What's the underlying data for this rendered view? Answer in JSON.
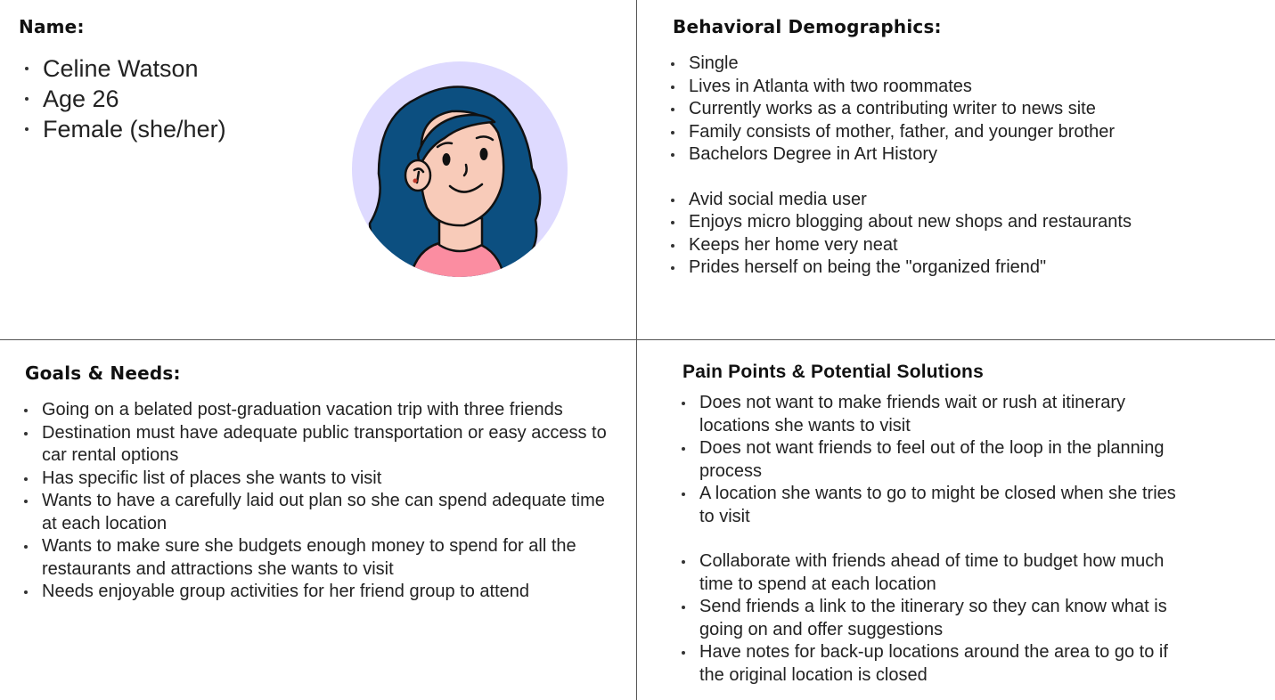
{
  "name_section": {
    "heading": "Name:",
    "items": [
      "Celine Watson",
      "Age 26",
      "Female (she/her)"
    ]
  },
  "avatar": {
    "icon": "user-avatar-illustration",
    "bg_color": "#dedaff",
    "hair_color": "#0c4f80",
    "skin_color": "#f8cbb9",
    "shirt_color": "#fb8da1"
  },
  "behavioral": {
    "heading": "Behavioral Demographics:",
    "group1": [
      "Single",
      "Lives in Atlanta with two roommates",
      "Currently works as a contributing writer to news site",
      "Family consists of mother, father, and younger brother",
      "Bachelors Degree in Art History"
    ],
    "group2": [
      "Avid social media user",
      "Enjoys micro blogging about new shops and restaurants",
      "Keeps her home very neat",
      "Prides herself on being the \"organized friend\""
    ]
  },
  "goals": {
    "heading": "Goals & Needs:",
    "items": [
      "Going on a belated post-graduation vacation trip with three friends",
      "Destination must have adequate public transportation or easy access to car rental options",
      "Has specific list of places she wants to visit",
      "Wants to have a carefully laid out plan so she can spend adequate time at each location",
      "Wants to make sure she budgets enough money to spend  for all the restaurants and attractions she wants to visit",
      "Needs enjoyable group activities for her friend group to attend"
    ]
  },
  "pain_points": {
    "heading": "Pain Points & Potential Solutions",
    "group1": [
      "Does not want to make friends wait or rush at itinerary locations she wants to visit",
      "Does not want friends to feel out of the loop in the planning process",
      "A location she wants to go to might be closed when she tries to visit"
    ],
    "group2": [
      "Collaborate with friends ahead of time to budget how much time to spend at each location",
      "Send friends a link to the itinerary so they can know what is going on and offer suggestions",
      "Have notes for back-up locations around the area to go to if the original location is closed"
    ]
  }
}
